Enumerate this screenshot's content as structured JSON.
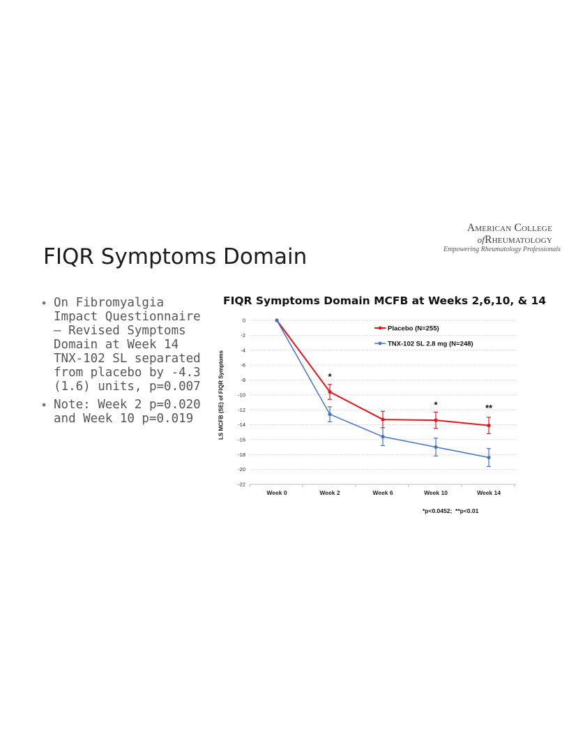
{
  "logo": {
    "line1": "American College",
    "line2_of": "of",
    "line2": "Rheumatology",
    "tagline": "Empowering Rheumatology Professionals"
  },
  "slide": {
    "title": "FIQR Symptoms Domain",
    "bullets": [
      "On Fibromyalgia Impact Questionnaire – Revised Symptoms Domain at Week 14 TNX-102 SL separated from placebo by -4.3 (1.6) units, p=0.007",
      "Note: Week 2 p=0.020 and Week 10 p=0.019"
    ],
    "bullet_glyph": "•"
  },
  "chart_data": {
    "type": "line",
    "title": "FIQR Symptoms Domain MCFB at Weeks 2,6,10, & 14",
    "ylabel": "LS MCFB (SE) of FIQR Symptoms",
    "xlabel": "",
    "categories": [
      "Week 0",
      "Week 2",
      "Week 6",
      "Week 10",
      "Week 14"
    ],
    "ylim": [
      -22,
      0
    ],
    "yticks": [
      0,
      -2,
      -4,
      -6,
      -8,
      -10,
      -12,
      -14,
      -16,
      -18,
      -20,
      -22
    ],
    "grid": true,
    "legend_position": "top-right",
    "series": [
      {
        "name": "Placebo (N=255)",
        "color": "#e8141c",
        "values": [
          0,
          -9.6,
          -13.3,
          -13.4,
          -14.1
        ],
        "errors": [
          0,
          1.0,
          1.1,
          1.1,
          1.1
        ]
      },
      {
        "name": "TNX-102 SL 2.8 mg (N=248)",
        "color": "#4472c4",
        "values": [
          0,
          -12.6,
          -15.6,
          -17.0,
          -18.4
        ],
        "errors": [
          0,
          1.0,
          1.2,
          1.2,
          1.2
        ]
      }
    ],
    "annotations": [
      {
        "category": "Week 2",
        "text": "*",
        "y": -7.4
      },
      {
        "category": "Week 10",
        "text": "*",
        "y": -11.2
      },
      {
        "category": "Week 14",
        "text": "**",
        "y": -11.6
      }
    ],
    "footnote": "*p<0.0452;  **p<0.01"
  }
}
